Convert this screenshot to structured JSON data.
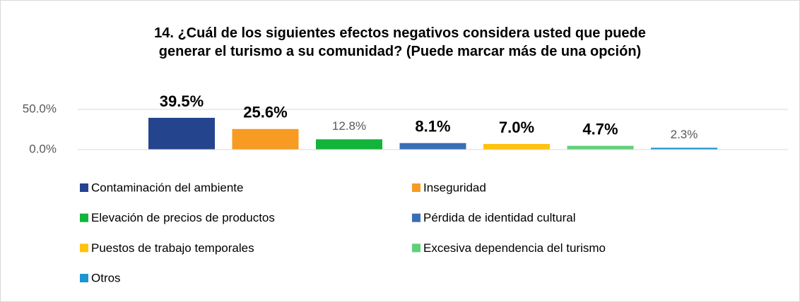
{
  "chart_data": {
    "type": "bar",
    "title": "14. ¿Cuál de los siguientes efectos negativos considera usted que puede generar el turismo a su comunidad? (Puede marcar más de una opción)",
    "categories": [
      null
    ],
    "series": [
      {
        "name": "Contaminación del ambiente",
        "color": "#24448e",
        "values": [
          39.5
        ],
        "value_labels": [
          "39.5%"
        ]
      },
      {
        "name": "Inseguridad",
        "color": "#f79b22",
        "values": [
          25.6
        ],
        "value_labels": [
          "25.6%"
        ]
      },
      {
        "name": "Elevación de precios de productos",
        "color": "#12b43a",
        "values": [
          12.8
        ],
        "value_labels": [
          "12.8%"
        ]
      },
      {
        "name": "Pérdida de identidad cultural",
        "color": "#3a6eb6",
        "values": [
          8.1
        ],
        "value_labels": [
          "8.1%"
        ]
      },
      {
        "name": "Puestos de trabajo temporales",
        "color": "#ffc20e",
        "values": [
          7.0
        ],
        "value_labels": [
          "7.0%"
        ]
      },
      {
        "name": "Excesiva dependencia del turismo",
        "color": "#5fd07a",
        "values": [
          4.7
        ],
        "value_labels": [
          "4.7%"
        ]
      },
      {
        "name": "Otros",
        "color": "#1b95d3",
        "values": [
          2.3
        ],
        "value_labels": [
          "2.3%"
        ]
      }
    ],
    "ylim": [
      0,
      50
    ],
    "yticks": [
      {
        "value": 0,
        "label": "0.0%"
      },
      {
        "value": 50,
        "label": "50.0%"
      }
    ],
    "grid": true,
    "legend": "bottom"
  }
}
